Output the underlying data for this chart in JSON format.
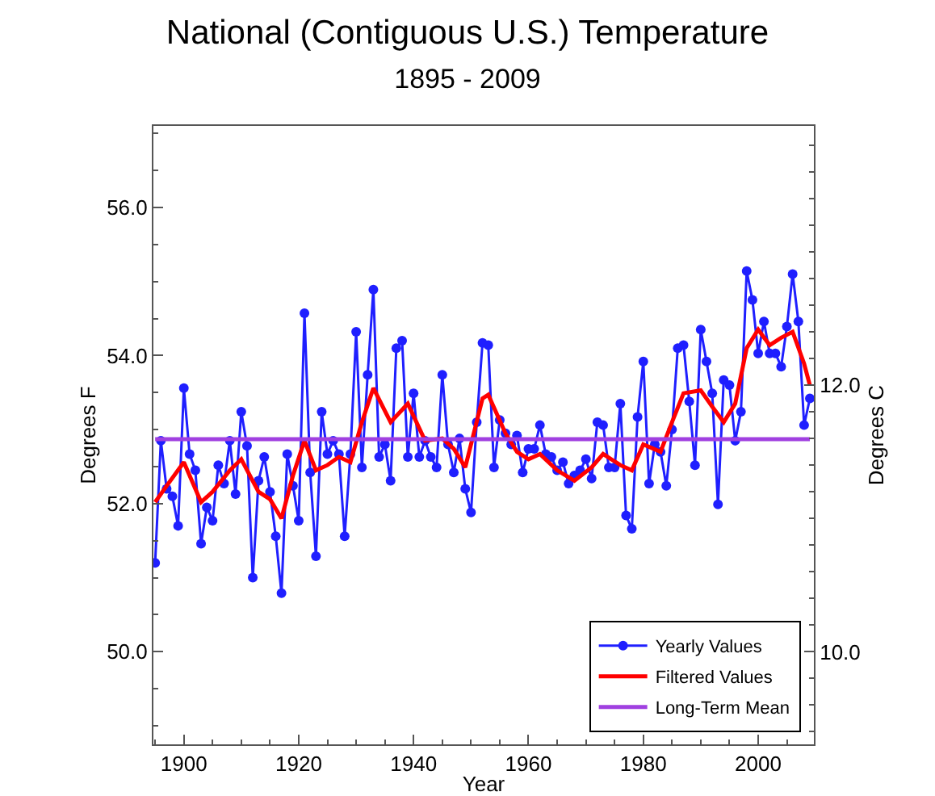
{
  "chart_data": {
    "type": "line",
    "title": "National (Contiguous U.S.) Temperature",
    "subtitle": "1895 - 2009",
    "xlabel": "Year",
    "ylabel": "Degrees F",
    "y2label": "Degrees C",
    "xlim": [
      1894.7,
      2009.7
    ],
    "xticks": [
      1900,
      1920,
      1940,
      1960,
      1980,
      2000
    ],
    "ylim": [
      48.75,
      57.1
    ],
    "yticks": [
      {
        "value": 50,
        "label": "50.0"
      },
      {
        "value": 52,
        "label": "52.0"
      },
      {
        "value": 54,
        "label": "54.0"
      },
      {
        "value": 56,
        "label": "56.0"
      }
    ],
    "y2lim": [
      9.306,
      13.944
    ],
    "y2ticks": [
      {
        "value": 10,
        "label": "10.0"
      },
      {
        "value": 12,
        "label": "12.0"
      }
    ],
    "grid": false,
    "legend": "bottom right",
    "series": [
      {
        "name": "Yearly Values",
        "color": "#1f1fff",
        "marker": "circle",
        "x": [
          1895,
          1896,
          1897,
          1898,
          1899,
          1900,
          1901,
          1902,
          1903,
          1904,
          1905,
          1906,
          1907,
          1908,
          1909,
          1910,
          1911,
          1912,
          1913,
          1914,
          1915,
          1916,
          1917,
          1918,
          1919,
          1920,
          1921,
          1922,
          1923,
          1924,
          1925,
          1926,
          1927,
          1928,
          1929,
          1930,
          1931,
          1932,
          1933,
          1934,
          1935,
          1936,
          1937,
          1938,
          1939,
          1940,
          1941,
          1942,
          1943,
          1944,
          1945,
          1946,
          1947,
          1948,
          1949,
          1950,
          1951,
          1952,
          1953,
          1954,
          1955,
          1956,
          1957,
          1958,
          1959,
          1960,
          1961,
          1962,
          1963,
          1964,
          1965,
          1966,
          1967,
          1968,
          1969,
          1970,
          1971,
          1972,
          1973,
          1974,
          1975,
          1976,
          1977,
          1978,
          1979,
          1980,
          1981,
          1982,
          1983,
          1984,
          1985,
          1986,
          1987,
          1988,
          1989,
          1990,
          1991,
          1992,
          1993,
          1994,
          1995,
          1996,
          1997,
          1998,
          1999,
          2000,
          2001,
          2002,
          2003,
          2004,
          2005,
          2006,
          2007,
          2008,
          2009
        ],
        "values": [
          51.2,
          52.85,
          52.2,
          52.1,
          51.7,
          53.56,
          52.67,
          52.45,
          51.46,
          51.95,
          51.77,
          52.52,
          52.27,
          52.85,
          52.13,
          53.24,
          52.78,
          51.0,
          52.31,
          52.63,
          52.16,
          51.56,
          50.79,
          52.67,
          52.24,
          51.77,
          54.57,
          52.42,
          51.29,
          53.24,
          52.67,
          52.85,
          52.67,
          51.56,
          52.67,
          54.32,
          52.49,
          53.74,
          54.89,
          52.63,
          52.8,
          52.31,
          54.1,
          54.2,
          52.63,
          53.49,
          52.63,
          52.85,
          52.63,
          52.49,
          53.74,
          52.8,
          52.42,
          52.88,
          52.2,
          51.88,
          53.1,
          54.17,
          54.14,
          52.49,
          53.13,
          52.95,
          52.8,
          52.92,
          52.42,
          52.74,
          52.74,
          53.06,
          52.67,
          52.63,
          52.45,
          52.56,
          52.27,
          52.38,
          52.45,
          52.6,
          52.34,
          53.1,
          53.06,
          52.49,
          52.49,
          53.35,
          51.84,
          51.66,
          53.17,
          53.92,
          52.27,
          52.8,
          52.7,
          52.24,
          53.0,
          54.1,
          54.14,
          53.38,
          52.52,
          54.35,
          53.92,
          53.49,
          51.99,
          53.67,
          53.6,
          52.85,
          53.24,
          55.14,
          54.75,
          54.03,
          54.46,
          54.03,
          54.03,
          53.85,
          54.39,
          55.1,
          54.46,
          53.06,
          53.42
        ]
      },
      {
        "name": "Filtered Values",
        "color": "#ff0000",
        "marker": "none",
        "x": [
          1895,
          1897,
          1900,
          1903,
          1905,
          1908,
          1910,
          1913,
          1915,
          1917,
          1919,
          1921,
          1923,
          1925,
          1927,
          1929,
          1931,
          1933,
          1936,
          1939,
          1942,
          1945,
          1947,
          1949,
          1952,
          1953,
          1956,
          1958,
          1960,
          1962,
          1965,
          1968,
          1971,
          1973,
          1976,
          1978,
          1980,
          1983,
          1985,
          1987,
          1990,
          1992,
          1994,
          1996,
          1998,
          2000,
          2002,
          2004,
          2006,
          2008,
          2009
        ],
        "values": [
          52.02,
          52.24,
          52.56,
          52.02,
          52.16,
          52.45,
          52.6,
          52.16,
          52.06,
          51.8,
          52.38,
          52.85,
          52.45,
          52.52,
          52.63,
          52.56,
          53.1,
          53.56,
          53.1,
          53.35,
          52.85,
          52.88,
          52.74,
          52.49,
          53.42,
          53.47,
          52.95,
          52.7,
          52.6,
          52.67,
          52.45,
          52.31,
          52.49,
          52.67,
          52.52,
          52.45,
          52.8,
          52.7,
          53.1,
          53.49,
          53.53,
          53.31,
          53.1,
          53.35,
          54.1,
          54.35,
          54.14,
          54.24,
          54.32,
          53.89,
          53.6
        ]
      },
      {
        "name": "Long-Term Mean",
        "color": "#a040e0",
        "marker": "none",
        "x": [
          1895,
          2009
        ],
        "values": [
          52.87,
          52.87
        ]
      }
    ]
  }
}
